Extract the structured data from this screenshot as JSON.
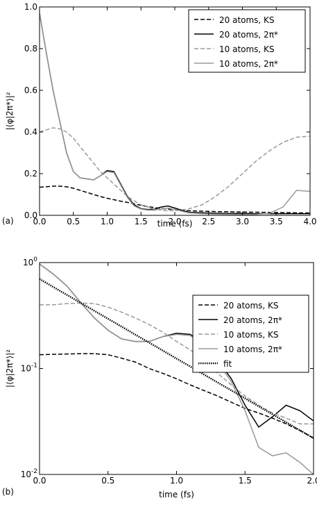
{
  "chart_data": [
    {
      "type": "line",
      "label": "(a)",
      "x_label": "time (fs)",
      "y_label": "|⟨φ|2π*⟩|²",
      "x": [
        0,
        0.1,
        0.2,
        0.3,
        0.4,
        0.5,
        0.6,
        0.7,
        0.8,
        0.9,
        1.0,
        1.1,
        1.2,
        1.3,
        1.4,
        1.5,
        1.6,
        1.7,
        1.8,
        1.9,
        2.0,
        2.2,
        2.4,
        2.6,
        2.8,
        3.0,
        3.2,
        3.4,
        3.6,
        3.8,
        4.0
      ],
      "xlim": [
        0,
        4
      ],
      "ylim": [
        0,
        1
      ],
      "xticks": [
        {
          "value": 0,
          "label": "0.0"
        },
        {
          "value": 0.5,
          "label": "0.5"
        },
        {
          "value": 1,
          "label": "1.0"
        },
        {
          "value": 1.5,
          "label": "1.5"
        },
        {
          "value": 2,
          "label": "2.0"
        },
        {
          "value": 2.5,
          "label": "2.5"
        },
        {
          "value": 3,
          "label": "3.0"
        },
        {
          "value": 3.5,
          "label": "3.5"
        },
        {
          "value": 4,
          "label": "4.0"
        }
      ],
      "yticks": [
        {
          "value": 0,
          "label": "0.0"
        },
        {
          "value": 0.2,
          "label": "0.2"
        },
        {
          "value": 0.4,
          "label": "0.4"
        },
        {
          "value": 0.6,
          "label": "0.6"
        },
        {
          "value": 0.8,
          "label": "0.8"
        },
        {
          "value": 1,
          "label": "1.0"
        }
      ],
      "log_y": false,
      "legend": "upper right",
      "series": [
        {
          "name": "20 atoms, KS",
          "color": "#000000",
          "style": "dashed",
          "values": [
            0.135,
            0.137,
            0.14,
            0.14,
            0.137,
            0.13,
            0.12,
            0.11,
            0.1,
            0.09,
            0.082,
            0.075,
            0.068,
            0.062,
            0.055,
            0.048,
            0.042,
            0.037,
            0.033,
            0.03,
            0.027,
            0.022,
            0.02,
            0.018,
            0.017,
            0.016,
            0.015,
            0.014,
            0.013,
            0.012,
            0.011
          ]
        },
        {
          "name": "20 atoms, 2π*",
          "color": "#000000",
          "style": "solid",
          "values": [
            0.97,
            0.78,
            0.6,
            0.45,
            0.3,
            0.21,
            0.18,
            0.175,
            0.17,
            0.19,
            0.215,
            0.21,
            0.15,
            0.09,
            0.05,
            0.032,
            0.028,
            0.03,
            0.04,
            0.045,
            0.035,
            0.015,
            0.012,
            0.01,
            0.009,
            0.009,
            0.008,
            0.008,
            0.008,
            0.008,
            0.008
          ]
        },
        {
          "name": "10 atoms, KS",
          "color": "#999999",
          "style": "dashed",
          "values": [
            0.4,
            0.41,
            0.42,
            0.415,
            0.4,
            0.37,
            0.33,
            0.29,
            0.25,
            0.21,
            0.18,
            0.15,
            0.12,
            0.09,
            0.07,
            0.05,
            0.04,
            0.03,
            0.025,
            0.022,
            0.022,
            0.03,
            0.05,
            0.09,
            0.14,
            0.2,
            0.26,
            0.31,
            0.35,
            0.375,
            0.38
          ]
        },
        {
          "name": "10 atoms, 2π*",
          "color": "#999999",
          "style": "solid",
          "values": [
            0.97,
            0.78,
            0.6,
            0.45,
            0.3,
            0.21,
            0.18,
            0.175,
            0.17,
            0.19,
            0.21,
            0.205,
            0.145,
            0.085,
            0.045,
            0.03,
            0.025,
            0.025,
            0.03,
            0.035,
            0.028,
            0.012,
            0.008,
            0.006,
            0.005,
            0.004,
            0.004,
            0.01,
            0.04,
            0.12,
            0.115
          ]
        }
      ]
    },
    {
      "type": "line",
      "label": "(b)",
      "x_label": "time (fs)",
      "y_label": "|⟨φ|2π*⟩|²",
      "x": [
        0,
        0.1,
        0.2,
        0.3,
        0.4,
        0.5,
        0.6,
        0.7,
        0.8,
        0.9,
        1.0,
        1.1,
        1.2,
        1.3,
        1.4,
        1.5,
        1.6,
        1.7,
        1.8,
        1.9,
        2.0
      ],
      "xlim": [
        0,
        2
      ],
      "ylim": [
        0.01,
        1
      ],
      "xticks": [
        {
          "value": 0,
          "label": "0.0"
        },
        {
          "value": 0.5,
          "label": "0.5"
        },
        {
          "value": 1,
          "label": "1.0"
        },
        {
          "value": 1.5,
          "label": "1.5"
        },
        {
          "value": 2,
          "label": "2.0"
        }
      ],
      "yticks": [
        {
          "value": 0.01,
          "label": "10^-2"
        },
        {
          "value": 0.1,
          "label": "10^-1"
        },
        {
          "value": 1,
          "label": "10^0"
        }
      ],
      "log_y": true,
      "legend": "upper right",
      "series": [
        {
          "name": "20 atoms, KS",
          "color": "#000000",
          "style": "dashed",
          "values": [
            0.135,
            0.136,
            0.137,
            0.138,
            0.138,
            0.135,
            0.125,
            0.115,
            0.1,
            0.09,
            0.08,
            0.07,
            0.062,
            0.055,
            0.048,
            0.042,
            0.038,
            0.034,
            0.03,
            0.026,
            0.022
          ]
        },
        {
          "name": "20 atoms, 2π*",
          "color": "#000000",
          "style": "solid",
          "values": [
            0.97,
            0.78,
            0.6,
            0.42,
            0.3,
            0.23,
            0.19,
            0.18,
            0.18,
            0.2,
            0.215,
            0.21,
            0.17,
            0.12,
            0.08,
            0.045,
            0.028,
            0.035,
            0.045,
            0.04,
            0.032
          ]
        },
        {
          "name": "10 atoms, KS",
          "color": "#999999",
          "style": "dashed",
          "values": [
            0.4,
            0.4,
            0.41,
            0.415,
            0.41,
            0.38,
            0.34,
            0.3,
            0.26,
            0.22,
            0.18,
            0.15,
            0.12,
            0.09,
            0.07,
            0.055,
            0.045,
            0.038,
            0.034,
            0.03,
            0.03
          ]
        },
        {
          "name": "10 atoms, 2π*",
          "color": "#999999",
          "style": "solid",
          "values": [
            0.97,
            0.78,
            0.6,
            0.42,
            0.3,
            0.23,
            0.19,
            0.18,
            0.18,
            0.2,
            0.21,
            0.205,
            0.165,
            0.115,
            0.075,
            0.04,
            0.018,
            0.015,
            0.016,
            0.013,
            0.01
          ]
        },
        {
          "name": "fit",
          "color": "#000000",
          "style": "dotted",
          "x": [
            0,
            2
          ],
          "values": [
            0.7,
            0.022
          ]
        }
      ]
    }
  ]
}
